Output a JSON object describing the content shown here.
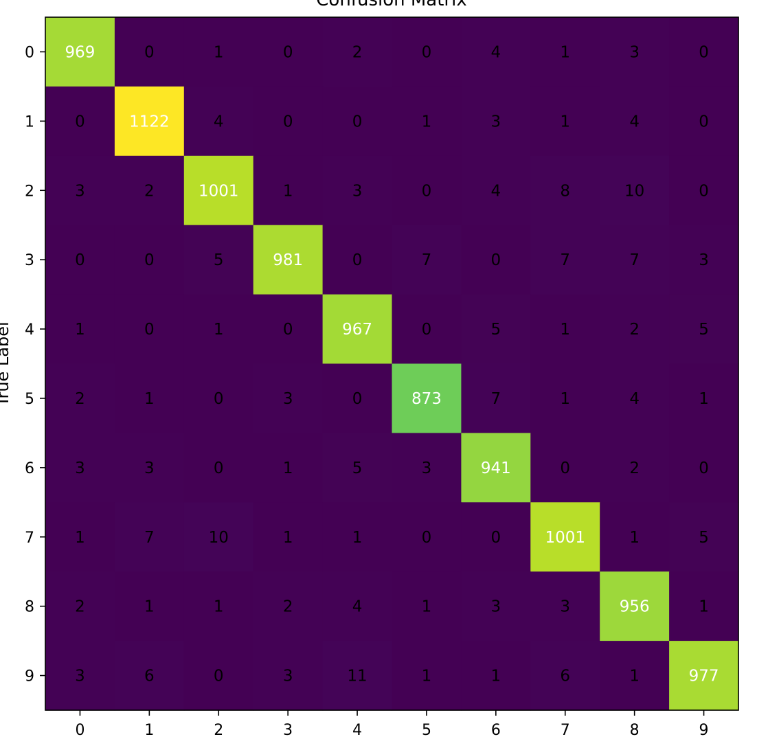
{
  "chart_data": {
    "type": "heatmap",
    "title": "Confusion Matrix",
    "ylabel": "True Label",
    "xlabel": "",
    "x_categories": [
      "0",
      "1",
      "2",
      "3",
      "4",
      "5",
      "6",
      "7",
      "8",
      "9"
    ],
    "y_categories": [
      "0",
      "1",
      "2",
      "3",
      "4",
      "5",
      "6",
      "7",
      "8",
      "9"
    ],
    "matrix": [
      [
        969,
        0,
        1,
        0,
        2,
        0,
        4,
        1,
        3,
        0
      ],
      [
        0,
        1122,
        4,
        0,
        0,
        1,
        3,
        1,
        4,
        0
      ],
      [
        3,
        2,
        1001,
        1,
        3,
        0,
        4,
        8,
        10,
        0
      ],
      [
        0,
        0,
        5,
        981,
        0,
        7,
        0,
        7,
        7,
        3
      ],
      [
        1,
        0,
        1,
        0,
        967,
        0,
        5,
        1,
        2,
        5
      ],
      [
        2,
        1,
        0,
        3,
        0,
        873,
        7,
        1,
        4,
        1
      ],
      [
        3,
        3,
        0,
        1,
        5,
        3,
        941,
        0,
        2,
        0
      ],
      [
        1,
        7,
        10,
        1,
        1,
        0,
        0,
        1001,
        1,
        5
      ],
      [
        2,
        1,
        1,
        2,
        4,
        1,
        3,
        3,
        956,
        1
      ],
      [
        3,
        6,
        0,
        3,
        11,
        1,
        1,
        6,
        1,
        977
      ]
    ],
    "colormap": "viridis",
    "value_range": [
      0,
      1122
    ],
    "grid": false,
    "colors": {
      "low": "#440154",
      "high": "#fde725",
      "text_on_light": "#ffffff",
      "text_on_dark": "#000000"
    }
  }
}
